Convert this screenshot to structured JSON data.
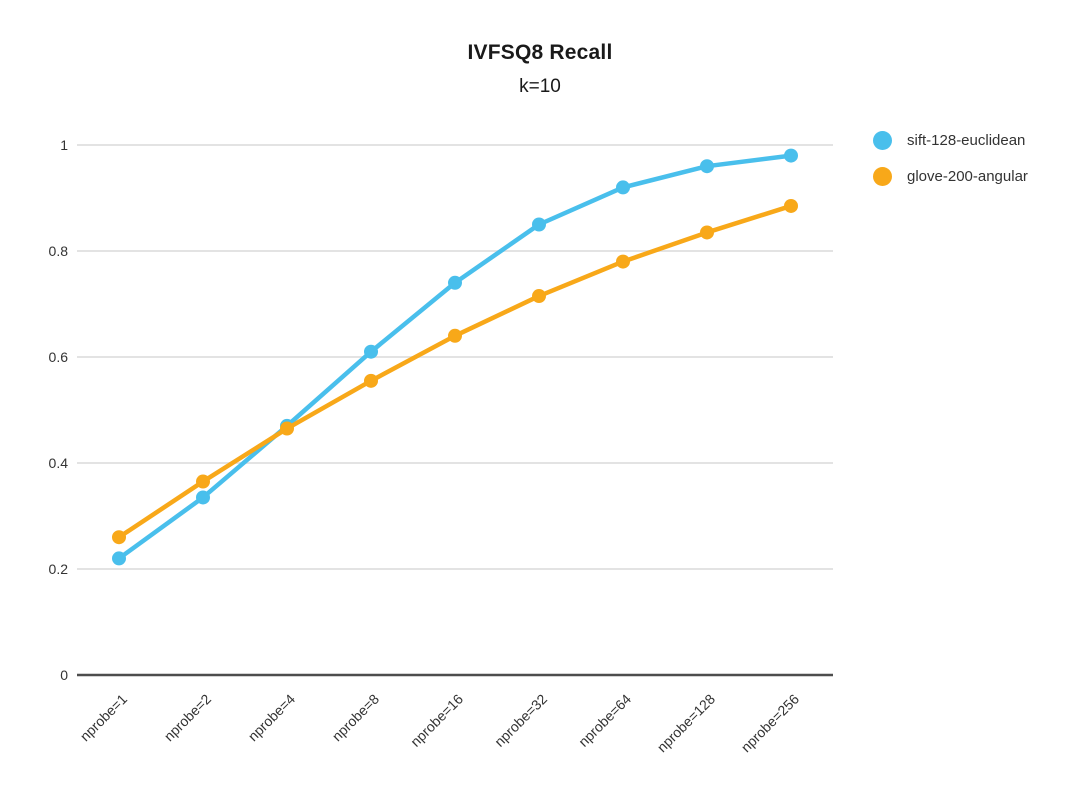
{
  "chart": {
    "title": "IVFSQ8 Recall",
    "subtitle": "k=10"
  },
  "chart_data": {
    "type": "line",
    "title": "IVFSQ8 Recall",
    "subtitle": "k=10",
    "categories": [
      "nprobe=1",
      "nprobe=2",
      "nprobe=4",
      "nprobe=8",
      "nprobe=16",
      "nprobe=32",
      "nprobe=64",
      "nprobe=128",
      "nprobe=256"
    ],
    "series": [
      {
        "name": "sift-128-euclidean",
        "color": "#49BFEC",
        "values": [
          0.22,
          0.335,
          0.47,
          0.61,
          0.74,
          0.85,
          0.92,
          0.96,
          0.98
        ]
      },
      {
        "name": "glove-200-angular",
        "color": "#F8A819",
        "values": [
          0.26,
          0.365,
          0.465,
          0.555,
          0.64,
          0.715,
          0.78,
          0.835,
          0.885
        ]
      }
    ],
    "xlabel": "",
    "ylabel": "",
    "ylim": [
      0,
      1
    ],
    "yticks": [
      0,
      0.2,
      0.4,
      0.6,
      0.8,
      1
    ],
    "ytick_labels": [
      "0",
      "0.2",
      "0.4",
      "0.6",
      "0.8",
      "1"
    ],
    "x_label_rotation": -45,
    "grid": true,
    "legend_position": "right",
    "colors": {
      "gridline": "#E3E3E3",
      "axis_line": "#4D4D4D",
      "tick_text": "#333333",
      "background": "#FFFFFF"
    }
  }
}
